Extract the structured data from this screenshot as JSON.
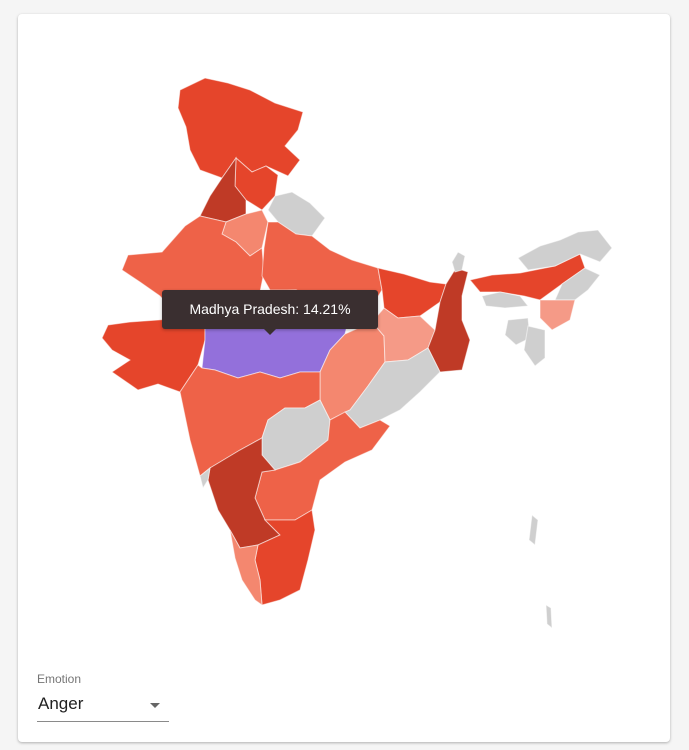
{
  "map": {
    "colors": {
      "dark": "#bf3a26",
      "medium": "#e5452b",
      "mid_light": "#ee6248",
      "light": "#f4876f",
      "lighter": "#f59a87",
      "no_data": "#cfcfcf",
      "highlight": "#9370db"
    }
  },
  "tooltip": {
    "text": "Madhya Pradesh: 14.21%"
  },
  "emotion_select": {
    "label": "Emotion",
    "value": "Anger"
  },
  "icons": {
    "dropdown": "chevron-down-icon"
  }
}
